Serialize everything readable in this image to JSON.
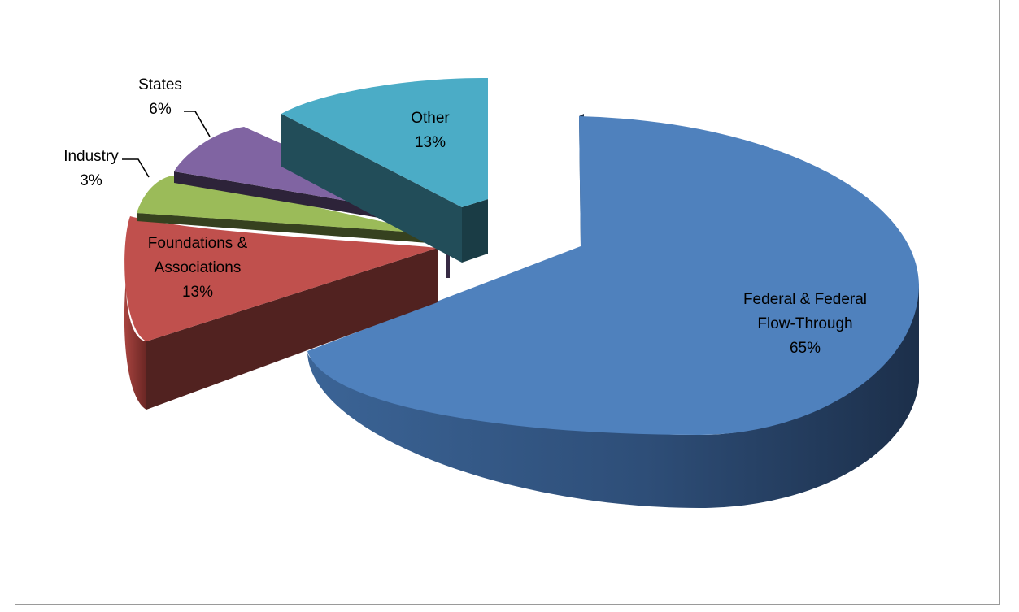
{
  "chart_data": {
    "type": "pie",
    "title": "",
    "style": "3d-exploded",
    "slices": [
      {
        "label": "Federal & Federal Flow-Through",
        "label_lines": [
          "Federal & Federal",
          "Flow-Through"
        ],
        "percent_text": "65%",
        "value": 65,
        "color": "#4f81bd"
      },
      {
        "label": "Foundations & Associations",
        "label_lines": [
          "Foundations &",
          "Associations"
        ],
        "percent_text": "13%",
        "value": 13,
        "color": "#c0504d"
      },
      {
        "label": "Industry",
        "label_lines": [
          "Industry"
        ],
        "percent_text": "3%",
        "value": 3,
        "color": "#9bbb59"
      },
      {
        "label": "States",
        "label_lines": [
          "States"
        ],
        "percent_text": "6%",
        "value": 6,
        "color": "#8064a2"
      },
      {
        "label": "Other",
        "label_lines": [
          "Other"
        ],
        "percent_text": "13%",
        "value": 13,
        "color": "#4bacc6"
      }
    ],
    "legend": "none",
    "data_labels": "category and percentage"
  }
}
